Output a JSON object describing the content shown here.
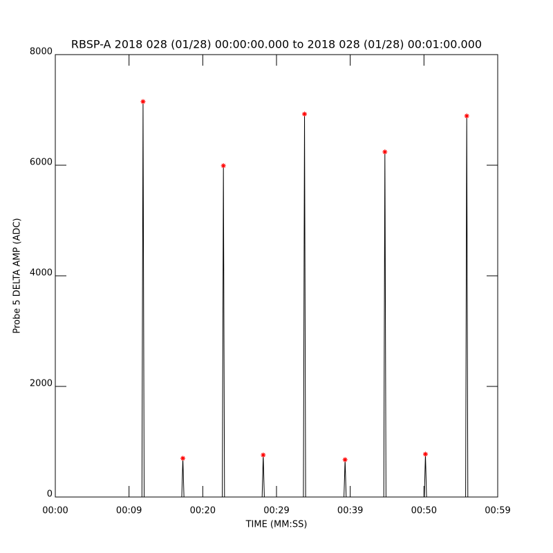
{
  "chart_data": {
    "type": "line",
    "title": "RBSP-A 2018 028 (01/28) 00:00:00.000 to 2018 028 (01/28) 00:01:00.000",
    "xlabel": "TIME (MM:SS)",
    "ylabel": "Probe 5 DELTA AMP (ADC)",
    "xlim": [
      0,
      60
    ],
    "ylim": [
      0,
      8000
    ],
    "xticks": [
      {
        "value": 0,
        "label": "00:00"
      },
      {
        "value": 10,
        "label": "00:09"
      },
      {
        "value": 20,
        "label": "00:20"
      },
      {
        "value": 30,
        "label": "00:29"
      },
      {
        "value": 40,
        "label": "00:39"
      },
      {
        "value": 50,
        "label": "00:50"
      },
      {
        "value": 60,
        "label": "00:59"
      }
    ],
    "yticks": [
      0,
      2000,
      4000,
      6000,
      8000
    ],
    "series": [
      {
        "color": "#000000",
        "marker": "none",
        "x": [
          0,
          11.75,
          11.9,
          12.05,
          17.15,
          17.3,
          17.45,
          22.65,
          22.8,
          22.95,
          28.05,
          28.2,
          28.35,
          33.65,
          33.8,
          33.95,
          39.15,
          39.3,
          39.45,
          44.55,
          44.7,
          44.85,
          50.05,
          50.2,
          50.35,
          55.65,
          55.8,
          55.95,
          60
        ],
        "values": [
          0,
          0,
          7150,
          0,
          0,
          700,
          0,
          0,
          5990,
          0,
          0,
          760,
          0,
          0,
          6925,
          0,
          0,
          675,
          0,
          0,
          6240,
          0,
          0,
          775,
          0,
          0,
          6890,
          0,
          0
        ]
      },
      {
        "color": "#ff0000",
        "marker": "asterisk",
        "x": [
          11.9,
          17.3,
          22.8,
          28.2,
          33.8,
          39.3,
          44.7,
          50.2,
          55.8
        ],
        "values": [
          7150,
          700,
          5990,
          760,
          6925,
          675,
          6240,
          775,
          6890
        ]
      }
    ]
  }
}
